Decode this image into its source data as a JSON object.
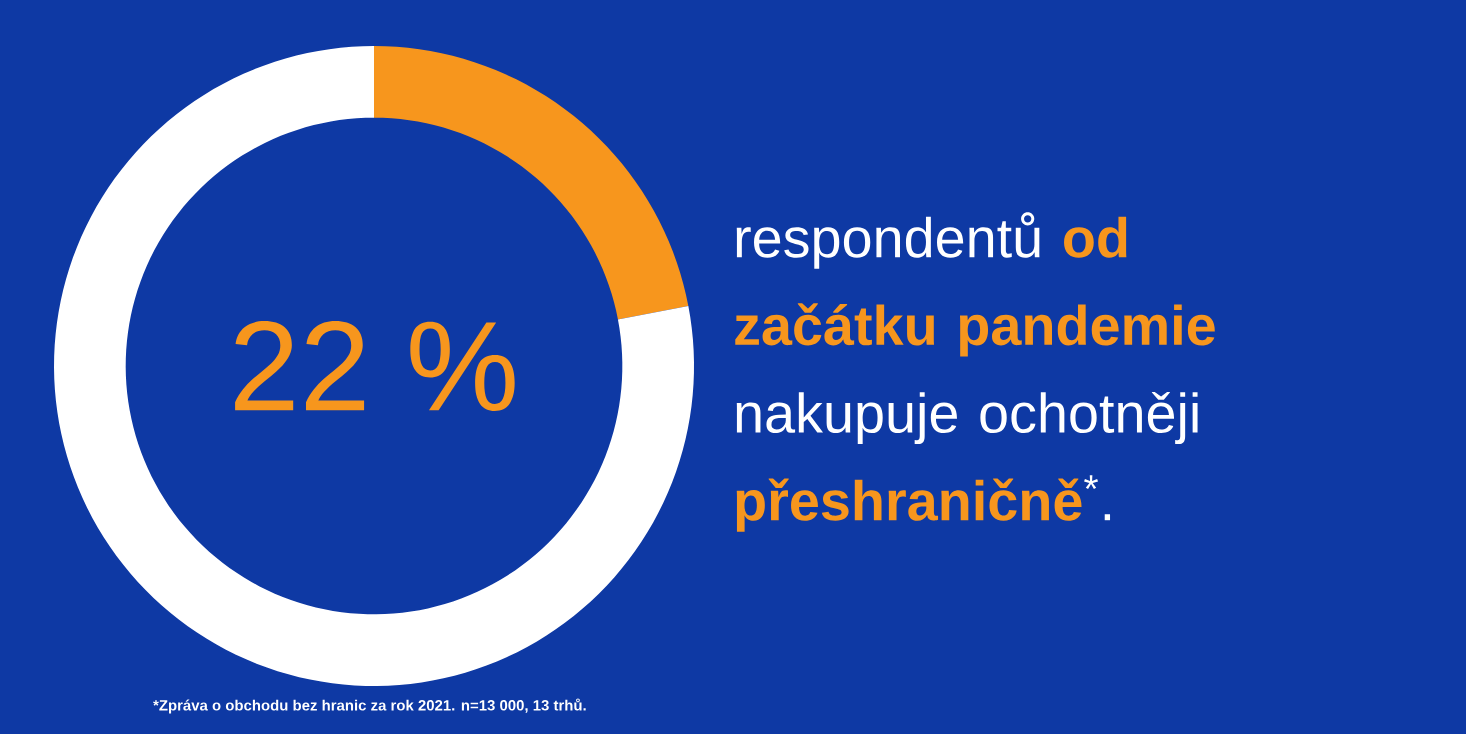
{
  "chart_data": {
    "type": "donut",
    "title": "respondentů **od začátku pandemie** nakupuje ochotněji **přeshraničně**$^{*}$.",
    "categories": [
      null,
      null
    ],
    "values": [
      22,
      78
    ],
    "colors": [
      "#f7961d",
      "#ffffff"
    ],
    "value_labels": [
      "22 %",
      null
    ],
    "annotations": [
      "*Zpráva o obchodu bez hranic za rok 2021. n=13 000, 13 trhů."
    ]
  }
}
